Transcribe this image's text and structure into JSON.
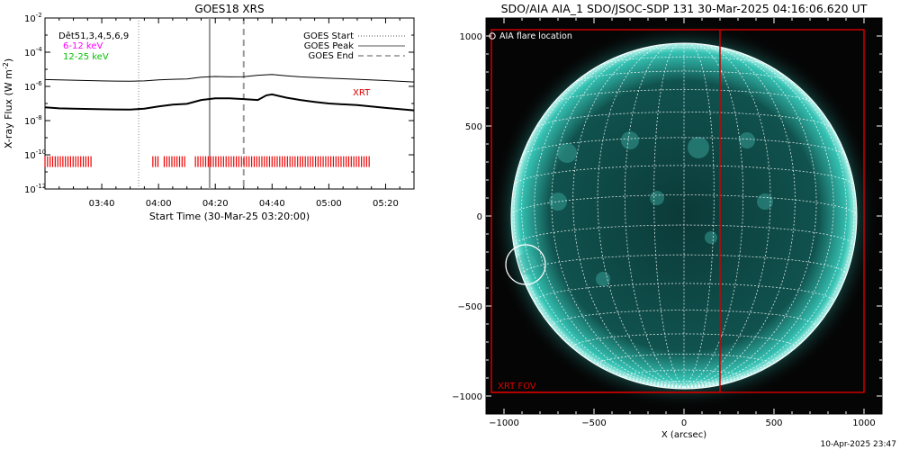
{
  "chart_data": [
    {
      "type": "line",
      "title": "GOES18 XRS",
      "xlabel": "Start Time (30-Mar-25 03:20:00)",
      "ylabel": "X-ray Flux (W m",
      "ylabel_exp": "-2",
      "ylabel_tail": ")",
      "ylog": true,
      "ylim": [
        1e-12,
        0.01
      ],
      "xlim_minutes": [
        0,
        70
      ],
      "x_ticks": [
        {
          "t": 20,
          "label": "03:40"
        },
        {
          "t": 40,
          "label": "04:00"
        },
        {
          "t": 60,
          "label": "04:20"
        },
        {
          "t": 80,
          "label": "04:40"
        },
        {
          "t": 100,
          "label": "05:00"
        },
        {
          "t": 120,
          "label": "05:20"
        }
      ],
      "y_ticks": [
        {
          "exp": -12,
          "label": "10",
          "sup": "-12"
        },
        {
          "exp": -10,
          "label": "10",
          "sup": "-10"
        },
        {
          "exp": -8,
          "label": "10",
          "sup": "-8"
        },
        {
          "exp": -6,
          "label": "10",
          "sup": "-6"
        },
        {
          "exp": -4,
          "label": "10",
          "sup": "-4"
        },
        {
          "exp": -2,
          "label": "10",
          "sup": "-2"
        }
      ],
      "labels_left": [
        {
          "text": "Dêt51,3,4,5,6,9",
          "color": "#000000"
        },
        {
          "text": "6-12 keV",
          "color": "#ff00ff"
        },
        {
          "text": "12-25 keV",
          "color": "#00c000"
        }
      ],
      "legend": [
        {
          "label": "GOES Start",
          "style": "dotted"
        },
        {
          "label": "GOES Peak",
          "style": "solid"
        },
        {
          "label": "GOES End",
          "style": "dashed"
        }
      ],
      "xrt_label": "XRT",
      "series": [
        {
          "name": "long",
          "t": [
            0,
            10,
            20,
            30,
            35,
            40,
            45,
            50,
            55,
            60,
            65,
            70,
            75,
            80,
            85,
            90,
            95,
            100,
            110,
            120,
            130
          ],
          "y": [
            2.5e-06,
            2.3e-06,
            2.1e-06,
            2e-06,
            2.1e-06,
            2.4e-06,
            2.6e-06,
            2.7e-06,
            3.5e-06,
            3.8e-06,
            3.6e-06,
            3.7e-06,
            4.5e-06,
            5e-06,
            4.2e-06,
            3.6e-06,
            3.3e-06,
            3e-06,
            2.6e-06,
            2.2e-06,
            1.8e-06
          ]
        },
        {
          "name": "short",
          "t": [
            0,
            5,
            10,
            20,
            30,
            35,
            40,
            45,
            50,
            55,
            60,
            65,
            70,
            75,
            78,
            80,
            85,
            90,
            95,
            100,
            110,
            120,
            130
          ],
          "y": [
            6e-08,
            5.2e-08,
            5e-08,
            4.6e-08,
            4.4e-08,
            5e-08,
            6.8e-08,
            8.5e-08,
            9.5e-08,
            1.6e-07,
            2e-07,
            2e-07,
            1.8e-07,
            1.6e-07,
            3e-07,
            3.4e-07,
            2.2e-07,
            1.6e-07,
            1.25e-07,
            1e-07,
            8e-08,
            5.5e-08,
            4e-08
          ]
        }
      ],
      "markers": {
        "start": 33,
        "peak": 58,
        "end": 70
      },
      "xrt_segments": [
        [
          0,
          17
        ],
        [
          38,
          40
        ],
        [
          42,
          50
        ],
        [
          53,
          115
        ]
      ],
      "xrt_level_exp": -10.4
    },
    {
      "type": "image",
      "title": "SDO/AIA AIA_1 SDO/JSOC-SDP 131 30-Mar-2025 04:16:06.620 UT",
      "xlabel": "X (arcsec)",
      "legend_text": "AIA flare location",
      "xrt_fov_label": "XRT FOV",
      "timestamp": "10-Apr-2025 23:47",
      "xlim": [
        -1100,
        1100
      ],
      "ylim": [
        -1100,
        1100
      ],
      "x_ticks": [
        -1000,
        -500,
        0,
        500,
        1000
      ],
      "y_ticks": [
        -1000,
        -500,
        0,
        500,
        1000
      ],
      "tick_labels_x": [
        "−1000",
        "−500",
        "0",
        "500",
        "1000"
      ],
      "tick_labels_y": [
        "1000",
        "500",
        "0",
        "−500",
        "−1000"
      ],
      "solar_radius": 960,
      "flare": {
        "x": -880,
        "y": -270,
        "r": 110
      },
      "xrt_fov": {
        "x0": -1070,
        "x1": 1000,
        "y0": -980,
        "y1": 1035
      },
      "divider_x": 200,
      "disk_color": "#35c3b4",
      "frame_color": "#cc0000"
    }
  ]
}
